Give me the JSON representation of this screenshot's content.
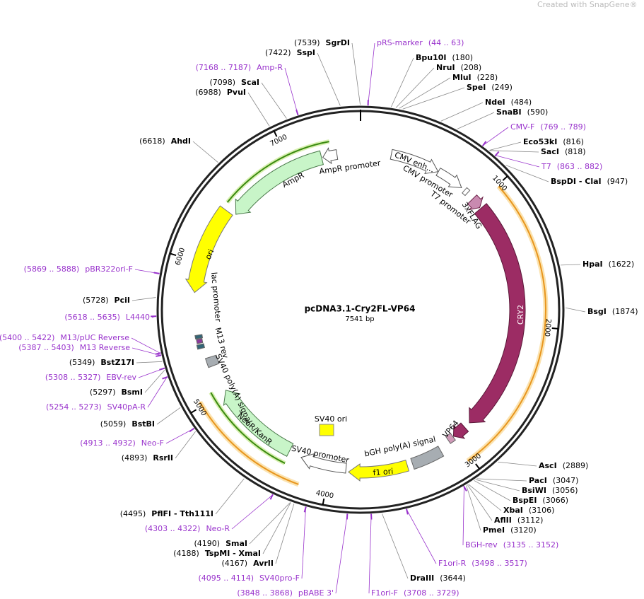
{
  "watermark": "Created with SnapGene®",
  "plasmid": {
    "name": "pcDNA3.1-Cry2FL-VP64",
    "length": "7541 bp"
  },
  "ticks": [
    "1000",
    "2000",
    "3000",
    "4000",
    "5000",
    "6000",
    "7000"
  ],
  "features": [
    "CMV enh...",
    "CMV promoter",
    "T7 promoter",
    "3xFLAG",
    "CRY2",
    "VP64",
    "bGH poly(A) signal",
    "f1 ori",
    "SV40 promoter",
    "SV40 ori",
    "NeoR/KanR",
    "SV40 poly(A) signal",
    "M13 rev",
    "lac promoter",
    "ori",
    "AmpR",
    "AmpR promoter"
  ],
  "enzymes": [
    {
      "name": "Bpu10I",
      "pos": "(180)"
    },
    {
      "name": "NruI",
      "pos": "(208)"
    },
    {
      "name": "MluI",
      "pos": "(228)"
    },
    {
      "name": "SpeI",
      "pos": "(249)"
    },
    {
      "name": "NdeI",
      "pos": "(484)"
    },
    {
      "name": "SnaBI",
      "pos": "(590)"
    },
    {
      "name": "Eco53kI",
      "pos": "(816)"
    },
    {
      "name": "SacI",
      "pos": "(818)"
    },
    {
      "name": "BspDI - ClaI",
      "pos": "(947)"
    },
    {
      "name": "HpaI",
      "pos": "(1622)"
    },
    {
      "name": "BsgI",
      "pos": "(1874)"
    },
    {
      "name": "AscI",
      "pos": "(2889)"
    },
    {
      "name": "PacI",
      "pos": "(3047)"
    },
    {
      "name": "BsiWI",
      "pos": "(3056)"
    },
    {
      "name": "BspEI",
      "pos": "(3066)"
    },
    {
      "name": "XbaI",
      "pos": "(3106)"
    },
    {
      "name": "AflII",
      "pos": "(3112)"
    },
    {
      "name": "PmeI",
      "pos": "(3120)"
    },
    {
      "name": "DraIII",
      "pos": "(3644)"
    },
    {
      "name": "AvrII",
      "pos": "(4167)"
    },
    {
      "name": "TspMI - XmaI",
      "pos": "(4188)"
    },
    {
      "name": "SmaI",
      "pos": "(4190)"
    },
    {
      "name": "PflFI - Tth111I",
      "pos": "(4495)"
    },
    {
      "name": "RsrII",
      "pos": "(4893)"
    },
    {
      "name": "BstBI",
      "pos": "(5059)"
    },
    {
      "name": "BsmI",
      "pos": "(5297)"
    },
    {
      "name": "BstZ17I",
      "pos": "(5349)"
    },
    {
      "name": "PciI",
      "pos": "(5728)"
    },
    {
      "name": "AhdI",
      "pos": "(6618)"
    },
    {
      "name": "PvuI",
      "pos": "(6988)"
    },
    {
      "name": "ScaI",
      "pos": "(7098)"
    },
    {
      "name": "SspI",
      "pos": "(7422)"
    },
    {
      "name": "SgrDI",
      "pos": "(7539)"
    }
  ],
  "primers": [
    {
      "name": "pRS-marker",
      "range": "(44 .. 63)"
    },
    {
      "name": "CMV-F",
      "range": "(769 .. 789)"
    },
    {
      "name": "T7",
      "range": "(863 .. 882)"
    },
    {
      "name": "BGH-rev",
      "range": "(3135 .. 3152)"
    },
    {
      "name": "F1ori-R",
      "range": "(3498 .. 3517)"
    },
    {
      "name": "F1ori-F",
      "range": "(3708 .. 3729)"
    },
    {
      "name": "pBABE 3'",
      "range": "(3848 .. 3868)"
    },
    {
      "name": "SV40pro-F",
      "range": "(4095 .. 4114)"
    },
    {
      "name": "Neo-R",
      "range": "(4303 .. 4322)"
    },
    {
      "name": "Neo-F",
      "range": "(4913 .. 4932)"
    },
    {
      "name": "SV40pA-R",
      "range": "(5254 .. 5273)"
    },
    {
      "name": "EBV-rev",
      "range": "(5308 .. 5327)"
    },
    {
      "name": "M13 Reverse",
      "range": "(5387 .. 5403)"
    },
    {
      "name": "M13/pUC Reverse",
      "range": "(5400 .. 5422)"
    },
    {
      "name": "L4440",
      "range": "(5618 .. 5635)"
    },
    {
      "name": "pBR322ori-F",
      "range": "(5869 .. 5888)"
    },
    {
      "name": "Amp-R",
      "range": "(7168 .. 7187)"
    }
  ]
}
